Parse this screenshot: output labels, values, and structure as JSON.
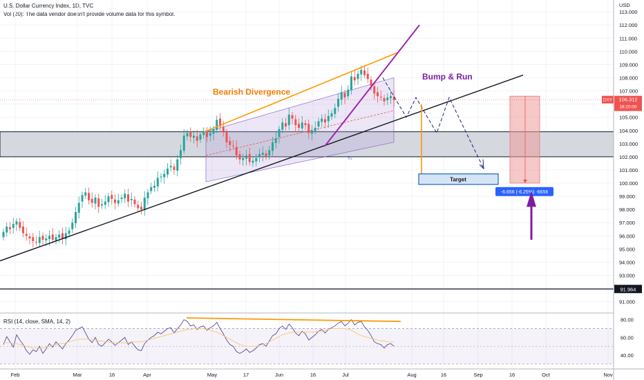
{
  "header": {
    "symbol_line": "U.S. Dollar Currency Index, 1D, TVC",
    "volume_line": "Vol (20): The data vendor doesn't provide volume data for this symbol."
  },
  "chart_data": {
    "type": "candlestick",
    "title": "U.S. Dollar Currency Index, 1D, TVC",
    "currency_label": "USD",
    "x_ticks": [
      "Feb",
      "Mar",
      "16",
      "Apr",
      "May",
      "17",
      "Jun",
      "16",
      "Jul",
      "Aug",
      "16",
      "Sep",
      "16",
      "Oct",
      "Nov"
    ],
    "y_ticks": [
      "113.000",
      "112.000",
      "111.000",
      "110.000",
      "109.000",
      "108.000",
      "107.000",
      "106.000",
      "105.000",
      "104.000",
      "103.000",
      "102.000",
      "101.000",
      "100.000",
      "99.000",
      "98.000",
      "97.000",
      "96.000",
      "95.000",
      "94.000",
      "93.000",
      "92.000",
      "91.000"
    ],
    "ylim": [
      90.3,
      113.9
    ],
    "close_series": [
      96.3,
      96.7,
      96.5,
      96.9,
      97.1,
      96.6,
      96.2,
      96.0,
      95.8,
      95.6,
      95.5,
      95.9,
      95.7,
      95.8,
      96.0,
      95.7,
      95.9,
      96.1,
      95.8,
      96.2,
      96.4,
      97.0,
      97.8,
      98.5,
      99.1,
      99.3,
      98.7,
      98.5,
      98.9,
      98.2,
      98.4,
      98.6,
      99.0,
      98.8,
      98.5,
      98.7,
      98.9,
      99.2,
      98.6,
      98.8,
      98.4,
      98.1,
      98.0,
      98.9,
      99.3,
      99.7,
      99.8,
      100.4,
      100.5,
      100.7,
      101.1,
      101.3,
      101.0,
      101.8,
      102.5,
      103.6,
      103.8,
      103.5,
      103.6,
      103.2,
      103.7,
      103.9,
      103.5,
      103.8,
      104.1,
      104.8,
      104.3,
      103.9,
      103.1,
      102.9,
      102.8,
      102.1,
      101.8,
      101.9,
      102.1,
      101.6,
      101.7,
      101.9,
      102.2,
      102.3,
      102.0,
      102.5,
      103.1,
      103.4,
      104.1,
      104.6,
      104.3,
      105.2,
      104.9,
      104.4,
      104.2,
      104.6,
      104.4,
      103.8,
      104.0,
      104.2,
      104.7,
      104.9,
      104.6,
      105.1,
      105.3,
      105.7,
      106.4,
      106.9,
      106.5,
      107.1,
      108.1,
      107.8,
      108.3,
      108.6,
      108.2,
      107.9,
      107.4,
      106.8,
      106.6,
      106.5,
      106.2,
      106.5,
      106.6,
      106.3
    ],
    "annotations": {
      "bearish_divergence": "Bearish Divergence",
      "bump_and_run": "Bump & Run",
      "target": "Target",
      "measure": "-6.656 (-6.25%) -6656",
      "channel_label": "51°"
    },
    "price_badge": {
      "value": "106.312",
      "countdown": "18:20:00",
      "symbol": "DXY"
    },
    "level_badge": {
      "value": "91.964"
    },
    "support_zone": [
      102.0,
      103.9
    ],
    "horizontal_level": 91.964,
    "rsi": {
      "label": "RSI (14, close, SMA, 14, 2)",
      "y_ticks": [
        "80.00",
        "60.00",
        "40.00"
      ],
      "ylim": [
        26,
        86
      ],
      "band": [
        30,
        70
      ],
      "values": [
        52,
        61,
        55,
        49,
        63,
        57,
        52,
        45,
        41,
        46,
        44,
        50,
        42,
        47,
        53,
        49,
        55,
        51,
        47,
        53,
        57,
        62,
        68,
        70,
        72,
        65,
        58,
        54,
        60,
        52,
        50,
        54,
        58,
        55,
        51,
        54,
        57,
        60,
        52,
        55,
        50,
        46,
        45,
        53,
        57,
        60,
        62,
        66,
        64,
        67,
        70,
        71,
        65,
        70,
        74,
        80,
        78,
        73,
        74,
        69,
        72,
        73,
        68,
        71,
        73,
        77,
        70,
        64,
        57,
        52,
        50,
        44,
        42,
        44,
        47,
        43,
        45,
        48,
        52,
        53,
        50,
        56,
        62,
        64,
        70,
        73,
        69,
        75,
        71,
        65,
        62,
        67,
        64,
        57,
        60,
        63,
        67,
        69,
        65,
        69,
        71,
        73,
        76,
        78,
        73,
        76,
        80,
        74,
        77,
        78,
        72,
        68,
        62,
        55,
        53,
        52,
        48,
        52,
        53,
        50
      ],
      "sma": [
        54,
        54,
        54,
        53,
        53,
        52,
        51,
        50,
        49,
        48,
        48,
        48,
        48,
        49,
        50,
        51,
        52,
        53,
        53,
        54,
        55,
        56,
        57,
        58,
        58,
        58,
        58,
        57,
        57,
        56,
        56,
        55,
        55,
        54,
        54,
        54,
        54,
        54,
        54,
        55,
        55,
        55,
        55,
        56,
        57,
        58,
        59,
        60,
        61,
        62,
        63,
        64,
        65,
        66,
        67,
        68,
        69,
        69,
        70,
        70,
        70,
        70,
        69,
        68,
        67,
        66,
        64,
        62,
        60,
        58,
        56,
        54,
        52,
        51,
        50,
        50,
        50,
        50,
        51,
        52,
        53,
        55,
        57,
        59,
        61,
        63,
        64,
        65,
        66,
        66,
        66,
        66,
        66,
        66,
        66,
        66,
        67,
        67,
        68,
        69,
        70,
        70,
        70,
        70,
        70,
        69,
        68,
        66,
        64,
        62,
        61,
        60,
        59,
        58,
        57,
        56,
        56,
        55,
        55,
        55
      ]
    }
  }
}
